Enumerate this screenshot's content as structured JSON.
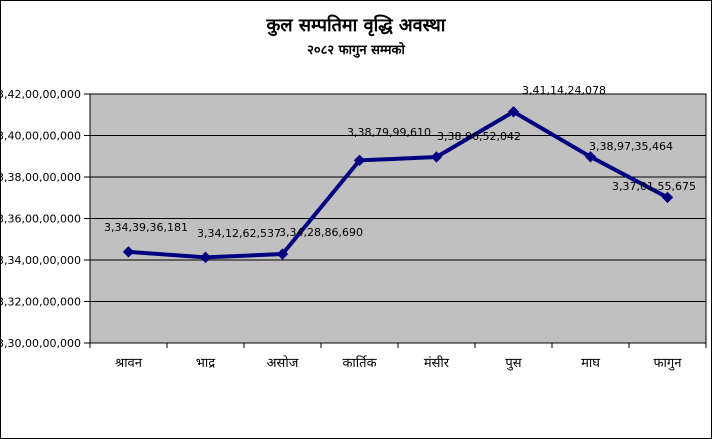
{
  "chart": {
    "title": "कुल सम्पतिमा वृद्धि अवस्था",
    "subtitle": "२०८२ फागुन सम्मको"
  },
  "chart_data": {
    "type": "line",
    "title": "कुल सम्पतिमा वृद्धि अवस्था",
    "subtitle": "२०८२ फागुन सम्मको",
    "categories": [
      "श्रावन",
      "भाद्र",
      "असोज",
      "कार्तिक",
      "मंसीर",
      "पुस",
      "माघ",
      "फागुन"
    ],
    "values": [
      3343936181,
      3341262537,
      3342886690,
      3387999610,
      3389652042,
      3411424078,
      3389735464,
      3370155675
    ],
    "data_labels": [
      "3,34,39,36,181",
      "3,34,12,62,537",
      "3,34,28,86,690",
      "3,38,79,99,610",
      "3,38,96,52,042",
      "3,41,14,24,078",
      "3,38,97,35,464",
      "3,37,01,55,675"
    ],
    "y_tick_labels": [
      "3,42,00,00,000",
      "3,40,00,00,000",
      "3,38,00,00,000",
      "3,36,00,00,000",
      "3,34,00,00,000",
      "3,32,00,00,000",
      "3,30,00,00,000"
    ],
    "ylim": [
      3300000000,
      3420000000
    ],
    "y_tick_step": 20000000,
    "grid": true,
    "legend": "none",
    "marker": "diamond",
    "colors": {
      "line": "#000080",
      "marker": "#000080",
      "plot_bg": "#c0c0c0",
      "grid": "#000000",
      "axis": "#000000",
      "text": "#000000",
      "background": "#ffffff"
    }
  }
}
